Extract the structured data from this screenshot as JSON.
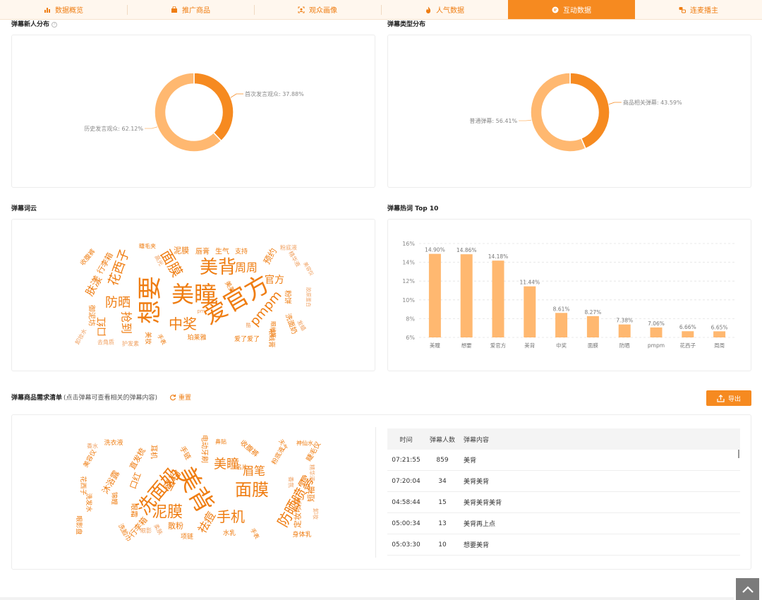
{
  "tabs": [
    {
      "label": "数据概览",
      "icon": "bar-chart-icon",
      "active": false
    },
    {
      "label": "推广商品",
      "icon": "shopping-bag-icon",
      "active": false
    },
    {
      "label": "观众画像",
      "icon": "user-frame-icon",
      "active": false
    },
    {
      "label": "人气数据",
      "icon": "flame-icon",
      "active": false
    },
    {
      "label": "互动数据",
      "icon": "interaction-icon",
      "active": true
    },
    {
      "label": "连麦播主",
      "icon": "link-mic-icon",
      "active": false
    }
  ],
  "sections": {
    "new_users": {
      "title": "弹幕新人分布"
    },
    "types": {
      "title": "弹幕类型分布"
    },
    "cloud": {
      "title": "弹幕词云"
    },
    "top10": {
      "title": "弹幕热词 Top 10"
    },
    "demand": {
      "title": "弹幕商品需求清单",
      "hint": "(点击弹幕可查看相关的弹幕内容)",
      "reset_label": "重置",
      "export_label": "导出"
    }
  },
  "colors": {
    "accent": "#f68a20",
    "accent_light": "#ffb870",
    "text_orange": "#ef7d12"
  },
  "chart_data": [
    {
      "type": "pie",
      "title": "弹幕新人分布",
      "slices": [
        {
          "label": "首次发言观众",
          "value": 37.88,
          "display": "首次发言观众: 37.88%",
          "color": "#f68a20"
        },
        {
          "label": "历史发言观众",
          "value": 62.12,
          "display": "历史发言观众: 62.12%",
          "color": "#ffb870"
        }
      ]
    },
    {
      "type": "pie",
      "title": "弹幕类型分布",
      "slices": [
        {
          "label": "商品相关弹幕",
          "value": 43.59,
          "display": "商品相关弹幕: 43.59%",
          "color": "#f68a20"
        },
        {
          "label": "普通弹幕",
          "value": 56.41,
          "display": "普通弹幕: 56.41%",
          "color": "#ffb870"
        }
      ]
    },
    {
      "type": "bar",
      "title": "弹幕热词 Top 10",
      "categories": [
        "美瞳",
        "想要",
        "爱官方",
        "美背",
        "中奖",
        "面膜",
        "防晒",
        "pmpm",
        "花西子",
        "周周"
      ],
      "values": [
        14.9,
        14.86,
        14.18,
        11.44,
        8.61,
        8.27,
        7.38,
        7.06,
        6.66,
        6.65
      ],
      "value_labels": [
        "14.90%",
        "14.86%",
        "14.18%",
        "11.44%",
        "8.61%",
        "8.27%",
        "7.38%",
        "7.06%",
        "6.66%",
        "6.65%"
      ],
      "yticks": [
        "6%",
        "8%",
        "10%",
        "12%",
        "14%",
        "16%"
      ],
      "ylim": [
        6,
        16
      ],
      "grid": true,
      "color": "#ffb870"
    }
  ],
  "word_cloud_1": [
    {
      "t": "爱官方",
      "s": 34,
      "c": "#ef7d12",
      "r": -30
    },
    {
      "t": "美瞳",
      "s": 32,
      "c": "#ef7d12",
      "r": 0
    },
    {
      "t": "想要",
      "s": 34,
      "c": "#ef7d12",
      "r": -90
    },
    {
      "t": "美背",
      "s": 26,
      "c": "#ef7d12",
      "r": 0
    },
    {
      "t": "中奖",
      "s": 20,
      "c": "#ef7d12",
      "r": 0
    },
    {
      "t": "面膜",
      "s": 20,
      "c": "#ef7d12",
      "r": 60
    },
    {
      "t": "防晒",
      "s": 18,
      "c": "#ef7d12",
      "r": 0
    },
    {
      "t": "pmpm",
      "s": 18,
      "c": "#ef7d12",
      "r": -50
    },
    {
      "t": "花西子",
      "s": 18,
      "c": "#ef7d12",
      "r": -70
    },
    {
      "t": "周周",
      "s": 16,
      "c": "#ef7d12",
      "r": 0
    },
    {
      "t": "官方",
      "s": 14,
      "c": "#ef7d12",
      "r": 0
    },
    {
      "t": "抢到",
      "s": 16,
      "c": "#ef7d12",
      "r": 90
    },
    {
      "t": "口红",
      "s": 14,
      "c": "#ef7d12",
      "r": -90
    },
    {
      "t": "肤漾",
      "s": 15,
      "c": "#ef7d12",
      "r": -60
    },
    {
      "t": "泥膜",
      "s": 11,
      "c": "#ef7d12",
      "r": 0
    },
    {
      "t": "唇膏",
      "s": 10,
      "c": "#ef7d12",
      "r": 0
    },
    {
      "t": "生气",
      "s": 10,
      "c": "#ef7d12",
      "r": 0
    },
    {
      "t": "支持",
      "s": 9,
      "c": "#ef7d12",
      "r": 0
    },
    {
      "t": "行李箱",
      "s": 11,
      "c": "#ef7d12",
      "r": -60
    },
    {
      "t": "收腹裤",
      "s": 9,
      "c": "#ef7d12",
      "r": -50
    },
    {
      "t": "睫毛夹",
      "s": 8,
      "c": "#ef7d12",
      "r": 0
    },
    {
      "t": "预约",
      "s": 12,
      "c": "#ef7d12",
      "r": -60
    },
    {
      "t": "粉底液",
      "s": 8,
      "c": "#f0a060",
      "r": 0
    },
    {
      "t": "精华液",
      "s": 8,
      "c": "#f0a060",
      "r": 60
    },
    {
      "t": "眼线笔",
      "s": 8,
      "c": "#ef7d12",
      "r": 90
    },
    {
      "t": "粉饼",
      "s": 10,
      "c": "#ef7d12",
      "r": 90
    },
    {
      "t": "御泥坊",
      "s": 10,
      "c": "#ef7d12",
      "r": 90
    },
    {
      "t": "美美",
      "s": 9,
      "c": "#ef7d12",
      "r": 60
    },
    {
      "t": "洗面奶",
      "s": 10,
      "c": "#ef7d12",
      "r": 70
    },
    {
      "t": "珀莱雅",
      "s": 9,
      "c": "#ef7d12",
      "r": 0
    },
    {
      "t": "爱了爱了",
      "s": 9,
      "c": "#ef7d12",
      "r": 0
    },
    {
      "t": "眼线膏",
      "s": 9,
      "c": "#ef7d12",
      "r": 90
    },
    {
      "t": "护发素",
      "s": 8,
      "c": "#f0a060",
      "r": 0
    },
    {
      "t": "去角质",
      "s": 8,
      "c": "#f0a060",
      "r": 0
    },
    {
      "t": "高光",
      "s": 8,
      "c": "#f0a060",
      "r": 60
    },
    {
      "t": "手表",
      "s": 8,
      "c": "#ef7d12",
      "r": 60
    },
    {
      "t": "美妆",
      "s": 9,
      "c": "#ef7d12",
      "r": 90
    },
    {
      "t": "发蜡",
      "s": 8,
      "c": "#f0a060",
      "r": 60
    },
    {
      "t": "胶原蛋白",
      "s": 7,
      "c": "#f0a060",
      "r": 90
    },
    {
      "t": "美容仪",
      "s": 7,
      "c": "#f0a060",
      "r": 60
    },
    {
      "t": "卸妆水",
      "s": 8,
      "c": "#f0a060",
      "r": -60
    },
    {
      "t": "pm",
      "s": 7,
      "c": "#f0a060",
      "r": 0
    },
    {
      "t": "酷",
      "s": 7,
      "c": "#f0a060",
      "r": 0
    }
  ],
  "word_cloud_2": [
    {
      "t": "美背",
      "s": 34,
      "c": "#ef7d12",
      "r": 60
    },
    {
      "t": "洗面奶",
      "s": 26,
      "c": "#ef7d12",
      "r": -50
    },
    {
      "t": "面膜",
      "s": 24,
      "c": "#ef7d12",
      "r": 0
    },
    {
      "t": "泥膜",
      "s": 22,
      "c": "#ef7d12",
      "r": 0
    },
    {
      "t": "防晒喷雾",
      "s": 20,
      "c": "#ef7d12",
      "r": -60
    },
    {
      "t": "手机",
      "s": 20,
      "c": "#ef7d12",
      "r": 0
    },
    {
      "t": "美瞳",
      "s": 18,
      "c": "#ef7d12",
      "r": 0
    },
    {
      "t": "眉笔",
      "s": 16,
      "c": "#ef7d12",
      "r": 0
    },
    {
      "t": "祛痘",
      "s": 16,
      "c": "#ef7d12",
      "r": -60
    },
    {
      "t": "蜜粉",
      "s": 16,
      "c": "#ef7d12",
      "r": -60
    },
    {
      "t": "沐浴露",
      "s": 12,
      "c": "#ef7d12",
      "r": -60
    },
    {
      "t": "口红",
      "s": 12,
      "c": "#ef7d12",
      "r": -70
    },
    {
      "t": "直发梳",
      "s": 11,
      "c": "#ef7d12",
      "r": -60
    },
    {
      "t": "眼霜",
      "s": 10,
      "c": "#ef7d12",
      "r": 90
    },
    {
      "t": "行李箱",
      "s": 11,
      "c": "#ef7d12",
      "r": -50
    },
    {
      "t": "散粉",
      "s": 11,
      "c": "#ef7d12",
      "r": 0
    },
    {
      "t": "项链",
      "s": 9,
      "c": "#ef7d12",
      "r": 0
    },
    {
      "t": "耳机",
      "s": 10,
      "c": "#ef7d12",
      "r": 90
    },
    {
      "t": "手链",
      "s": 10,
      "c": "#ef7d12",
      "r": 60
    },
    {
      "t": "电动牙刷",
      "s": 10,
      "c": "#ef7d12",
      "r": 90
    },
    {
      "t": "收腹裤",
      "s": 10,
      "c": "#ef7d12",
      "r": 40
    },
    {
      "t": "粉底液",
      "s": 9,
      "c": "#ef7d12",
      "r": -60
    },
    {
      "t": "睫毛仪",
      "s": 10,
      "c": "#ef7d12",
      "r": -60
    },
    {
      "t": "定妆喷雾",
      "s": 11,
      "c": "#ef7d12",
      "r": -90
    },
    {
      "t": "短袖",
      "s": 11,
      "c": "#ef7d12",
      "r": -90
    },
    {
      "t": "身体乳",
      "s": 9,
      "c": "#ef7d12",
      "r": 0
    },
    {
      "t": "水乳",
      "s": 9,
      "c": "#ef7d12",
      "r": 0
    },
    {
      "t": "洗衣液",
      "s": 9,
      "c": "#ef7d12",
      "r": 0
    },
    {
      "t": "美容仪",
      "s": 9,
      "c": "#ef7d12",
      "r": -60
    },
    {
      "t": "洗发水",
      "s": 9,
      "c": "#ef7d12",
      "r": 90
    },
    {
      "t": "花西子",
      "s": 9,
      "c": "#ef7d12",
      "r": 90
    },
    {
      "t": "眼影盘",
      "s": 9,
      "c": "#ef7d12",
      "r": 90
    },
    {
      "t": "锦鲤",
      "s": 9,
      "c": "#ef7d12",
      "r": 90
    },
    {
      "t": "洗脸巾",
      "s": 9,
      "c": "#ef7d12",
      "r": 60
    },
    {
      "t": "神仙水",
      "s": 8,
      "c": "#ef7d12",
      "r": 0
    },
    {
      "t": "天气",
      "s": 8,
      "c": "#ef7d12",
      "r": 60
    },
    {
      "t": "名片",
      "s": 8,
      "c": "#ef7d12",
      "r": 0
    },
    {
      "t": "鼻贴",
      "s": 8,
      "c": "#ef7d12",
      "r": 0
    },
    {
      "t": "手表",
      "s": 8,
      "c": "#ef7d12",
      "r": 60
    },
    {
      "t": "香水",
      "s": 8,
      "c": "#f0a060",
      "r": 0
    },
    {
      "t": "精华液",
      "s": 8,
      "c": "#f0a060",
      "r": 90
    },
    {
      "t": "卸妆",
      "s": 8,
      "c": "#f0a060",
      "r": 90
    },
    {
      "t": "眼影",
      "s": 8,
      "c": "#f0a060",
      "r": 0
    },
    {
      "t": "柔肤",
      "s": 8,
      "c": "#f0a060",
      "r": 60
    },
    {
      "t": "香氛",
      "s": 8,
      "c": "#f0a060",
      "r": 90
    }
  ],
  "table": {
    "headers": [
      "时间",
      "弹幕人数",
      "弹幕内容"
    ],
    "rows": [
      [
        "07:21:55",
        "859",
        "美背"
      ],
      [
        "07:20:04",
        "34",
        "美背美背"
      ],
      [
        "04:58:44",
        "15",
        "美背美背美背"
      ],
      [
        "05:00:34",
        "13",
        "美背再上点"
      ],
      [
        "05:03:30",
        "10",
        "想要美背"
      ]
    ]
  }
}
